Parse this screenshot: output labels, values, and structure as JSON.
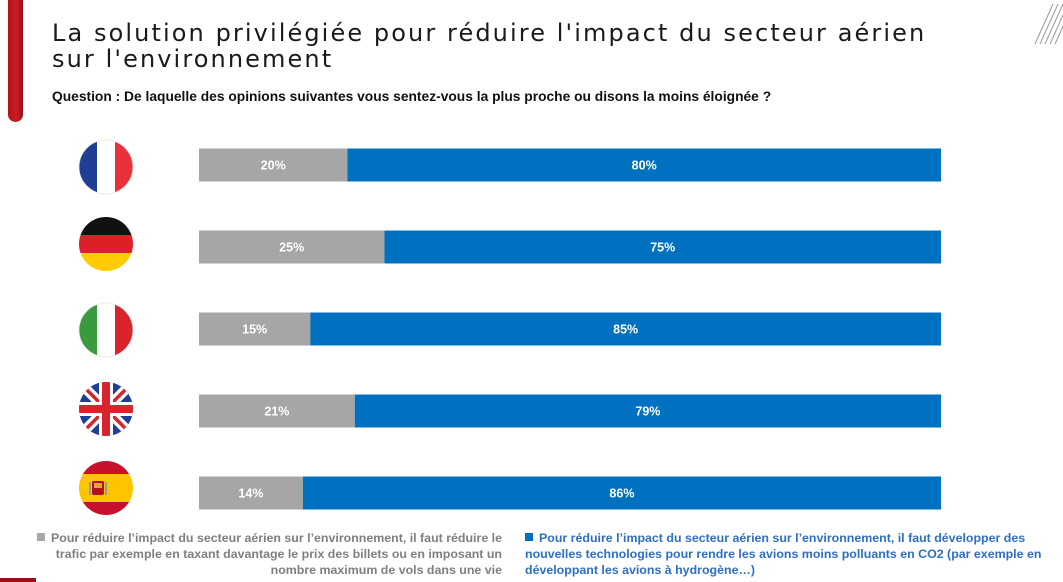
{
  "title": {
    "line1": "La solution privilégiée pour réduire l'impact du secteur aérien",
    "line2": "sur l'environnement"
  },
  "question": "Question : De laquelle des opinions suivantes vous sentez-vous la plus proche ou disons la moins éloignée ?",
  "colors": {
    "accent": "#c0151d",
    "gray": "#a6a6a6",
    "blue": "#0070c0"
  },
  "chart_data": {
    "type": "bar",
    "orientation": "horizontal",
    "stacked": true,
    "percent_stacked": true,
    "categories": [
      "France",
      "Germany",
      "Italy",
      "United Kingdom",
      "Spain"
    ],
    "category_display": "country flag icons",
    "series": [
      {
        "values": [
          20,
          25,
          15,
          21,
          14
        ],
        "color": "#a6a6a6",
        "labels": [
          "20%",
          "25%",
          "15%",
          "21%",
          "14%"
        ]
      },
      {
        "values": [
          80,
          75,
          85,
          79,
          86
        ],
        "color": "#0070c0",
        "labels": [
          "80%",
          "75%",
          "85%",
          "79%",
          "86%"
        ]
      }
    ],
    "xlim": [
      0,
      100
    ],
    "unit": "%",
    "grid": false,
    "legend_position": "bottom"
  },
  "legend": {
    "left": "Pour réduire l’impact du secteur aérien sur l’environnement, il faut réduire le trafic par exemple en taxant davantage le prix des billets ou en imposant un nombre maximum de vols dans une vie",
    "right": "Pour réduire l’impact du secteur aérien sur l’environnement, il faut développer des nouvelles technologies pour rendre les avions moins polluants en CO2 (par exemple en développant les avions à hydrogène…)"
  }
}
